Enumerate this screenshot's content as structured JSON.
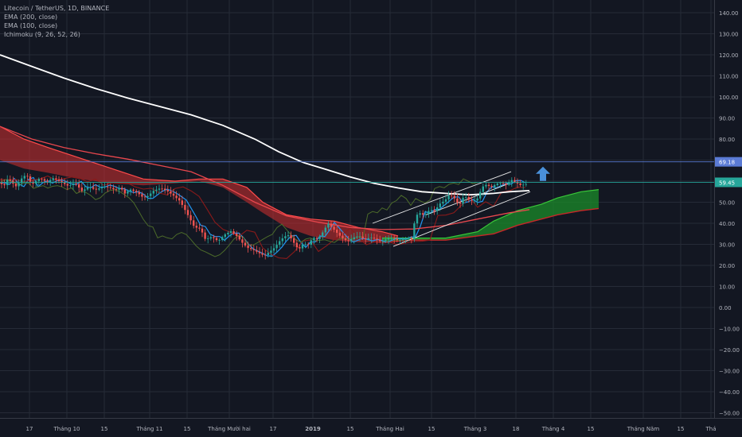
{
  "legend": {
    "symbol": "Litecoin / TetherUS, 1D, BINANCE",
    "ema200": "EMA (200, close)",
    "ema100": "EMA (100, close)",
    "ichimoku": "Ichimoku (9, 26, 52, 26)"
  },
  "colors": {
    "background": "#131722",
    "grid": "#262b37",
    "axis_text": "#b2b5be",
    "candle_up": "#26a69a",
    "candle_down": "#ef5350",
    "ema200": "#ffffff",
    "ema100": "#e8474d",
    "kumo_bear": "#d32f2f",
    "kumo_bull": "#1b8c2a",
    "tenkan": "#2196f3",
    "kijun": "#8b1a1a",
    "chikou": "#4c6b2a",
    "arrow": "#4a90d9",
    "price_box_blue": "#5b7bd5",
    "price_box_teal": "#26a69a"
  },
  "chart_data": {
    "type": "candlestick",
    "y_axis": {
      "ticks": [
        "140.00",
        "130.00",
        "120.00",
        "110.00",
        "100.00",
        "90.00",
        "80.00",
        "70.00",
        "60.00",
        "50.00",
        "40.00",
        "30.00",
        "20.00",
        "10.00",
        "0.00",
        "−10.00",
        "−20.00",
        "−30.00",
        "−40.00",
        "−50.00"
      ],
      "range": [
        -52,
        145
      ]
    },
    "x_axis": {
      "labels": [
        "17",
        "Tháng 10",
        "15",
        "Tháng 11",
        "15",
        "Tháng Mười hai",
        "17",
        "2019",
        "15",
        "Tháng Hai",
        "15",
        "Tháng 3",
        "18",
        "Tháng 4",
        "15",
        "Tháng Năm",
        "15",
        "Thá"
      ],
      "bold": [
        "2019"
      ]
    },
    "price_labels": [
      {
        "value": 69.18,
        "text": "69.18",
        "color": "#5b7bd5"
      },
      {
        "value": 59.45,
        "text": "59.45",
        "color": "#26a69a"
      }
    ],
    "close_path": [
      [
        0,
        59.2
      ],
      [
        6,
        58.1
      ],
      [
        10,
        61.3
      ],
      [
        15,
        59.0
      ],
      [
        21,
        56.7
      ],
      [
        26,
        60.2
      ],
      [
        33,
        62.4
      ],
      [
        40,
        57.4
      ],
      [
        50,
        60.6
      ],
      [
        59,
        58.9
      ],
      [
        67,
        61.0
      ],
      [
        76,
        59.7
      ],
      [
        86,
        58.0
      ],
      [
        94,
        59.9
      ],
      [
        103,
        56.1
      ],
      [
        112,
        58.3
      ],
      [
        120,
        56.7
      ],
      [
        130,
        58.1
      ],
      [
        138,
        57.3
      ],
      [
        145,
        55.8
      ],
      [
        151,
        57.0
      ],
      [
        157,
        53.6
      ],
      [
        163,
        55.5
      ],
      [
        172,
        53.9
      ],
      [
        180,
        51.2
      ],
      [
        186,
        52.1
      ],
      [
        193,
        54.7
      ],
      [
        202,
        56.2
      ],
      [
        210,
        55.1
      ],
      [
        218,
        53.2
      ],
      [
        226,
        51.0
      ],
      [
        232,
        47.2
      ],
      [
        238,
        43.3
      ],
      [
        244,
        39.1
      ],
      [
        252,
        38.2
      ],
      [
        258,
        33.1
      ],
      [
        266,
        34.3
      ],
      [
        274,
        31.9
      ],
      [
        282,
        34.7
      ],
      [
        290,
        36.0
      ],
      [
        297,
        33.6
      ],
      [
        304,
        30.2
      ],
      [
        311,
        27.5
      ],
      [
        319,
        26.3
      ],
      [
        326,
        24.9
      ],
      [
        332,
        23.8
      ],
      [
        339,
        26.0
      ],
      [
        345,
        28.1
      ],
      [
        351,
        31.3
      ],
      [
        357,
        33.8
      ],
      [
        363,
        34.8
      ],
      [
        369,
        31.4
      ],
      [
        375,
        28.1
      ],
      [
        381,
        31.2
      ],
      [
        387,
        30.6
      ],
      [
        393,
        34.1
      ],
      [
        399,
        33.2
      ],
      [
        405,
        36.2
      ],
      [
        412,
        40.4
      ],
      [
        419,
        37.4
      ],
      [
        425,
        34.7
      ],
      [
        431,
        32.3
      ],
      [
        437,
        30.8
      ],
      [
        444,
        32.5
      ],
      [
        451,
        33.1
      ],
      [
        458,
        31.3
      ],
      [
        465,
        32.4
      ],
      [
        472,
        31.8
      ],
      [
        479,
        30.6
      ],
      [
        486,
        32.4
      ],
      [
        493,
        33.1
      ],
      [
        500,
        32.1
      ],
      [
        507,
        33.3
      ],
      [
        513,
        33.8
      ],
      [
        519,
        33.0
      ],
      [
        521,
        44.1
      ],
      [
        527,
        45.8
      ],
      [
        533,
        44.6
      ],
      [
        540,
        47.3
      ],
      [
        546,
        46.3
      ],
      [
        552,
        49.6
      ],
      [
        559,
        51.0
      ],
      [
        565,
        53.7
      ],
      [
        571,
        51.4
      ],
      [
        577,
        47.9
      ],
      [
        583,
        52.5
      ],
      [
        589,
        50.2
      ],
      [
        595,
        49.6
      ],
      [
        601,
        51.3
      ],
      [
        605,
        56.3
      ],
      [
        611,
        57.6
      ],
      [
        617,
        56.6
      ],
      [
        624,
        58.5
      ],
      [
        630,
        59.1
      ],
      [
        636,
        58.4
      ],
      [
        642,
        61.1
      ],
      [
        648,
        60.0
      ],
      [
        654,
        58.8
      ],
      [
        660,
        59.45
      ]
    ],
    "series": [
      {
        "name": "EMA (200, close)",
        "color": "#ffffff",
        "points": [
          [
            0,
            120.0
          ],
          [
            40,
            114.5
          ],
          [
            80,
            109.0
          ],
          [
            120,
            104.0
          ],
          [
            160,
            99.5
          ],
          [
            200,
            95.5
          ],
          [
            240,
            91.5
          ],
          [
            280,
            86.5
          ],
          [
            320,
            80.0
          ],
          [
            350,
            74.0
          ],
          [
            380,
            69.0
          ],
          [
            410,
            65.5
          ],
          [
            440,
            62.0
          ],
          [
            470,
            59.0
          ],
          [
            500,
            56.8
          ],
          [
            530,
            55.0
          ],
          [
            560,
            54.2
          ],
          [
            590,
            53.5
          ],
          [
            620,
            54.2
          ],
          [
            640,
            55.0
          ],
          [
            665,
            55.5
          ]
        ]
      },
      {
        "name": "EMA (100, close)",
        "color": "#e8474d",
        "points": [
          [
            0,
            86.0
          ],
          [
            40,
            80.0
          ],
          [
            80,
            76.0
          ],
          [
            120,
            73.0
          ],
          [
            160,
            70.5
          ],
          [
            200,
            67.5
          ],
          [
            240,
            64.5
          ],
          [
            280,
            58.0
          ],
          [
            320,
            50.0
          ],
          [
            360,
            43.5
          ],
          [
            400,
            40.5
          ],
          [
            440,
            38.0
          ],
          [
            480,
            37.0
          ],
          [
            520,
            37.3
          ],
          [
            560,
            39.0
          ],
          [
            600,
            42.0
          ],
          [
            640,
            45.0
          ],
          [
            665,
            46.5
          ]
        ]
      }
    ],
    "channel_lines": [
      {
        "color": "#ffffff",
        "points": [
          [
            468,
            40.0
          ],
          [
            642,
            64.5
          ]
        ]
      },
      {
        "color": "#ffffff",
        "points": [
          [
            494,
            29.0
          ],
          [
            666,
            55.0
          ]
        ]
      },
      {
        "color": "#ffffff",
        "points": [
          [
            535,
            44.0
          ],
          [
            640,
            59.0
          ]
        ]
      }
    ],
    "annotations": [
      {
        "type": "arrow_up",
        "x": 682,
        "y": 63.5
      }
    ]
  }
}
